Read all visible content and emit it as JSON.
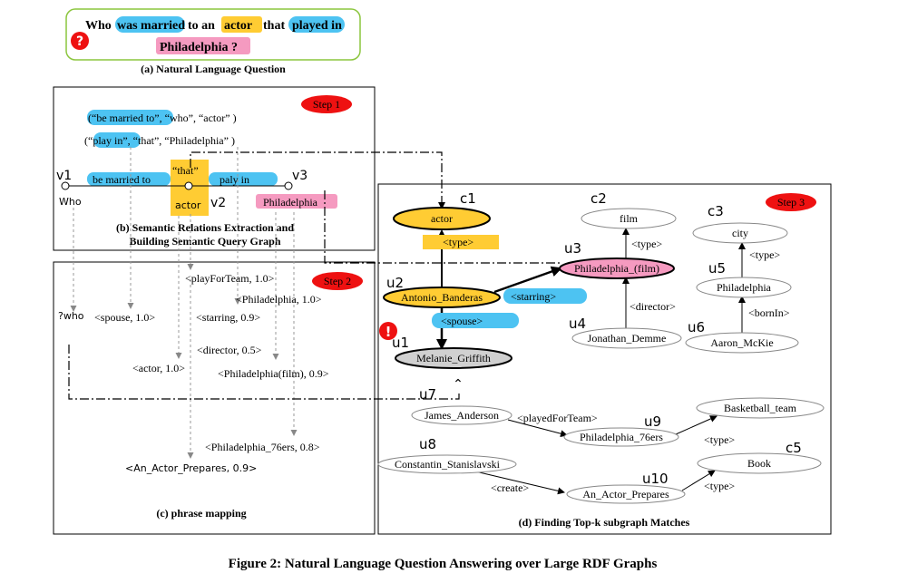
{
  "question": {
    "word_who": "Who",
    "hl_married": "was married",
    "word_to": "to an",
    "hl_actor": "actor",
    "word_that": "that",
    "hl_played": "played in",
    "hl_phil": "Philadelphia ?",
    "badge": "?",
    "caption": "(a) Natural Language Question"
  },
  "step_b": {
    "step_label": "Step 1",
    "rel1_hl": "(“be married to”",
    "rel1_rest": ", “who”, “actor” )",
    "rel2_open": "(“",
    "rel2_hl": "play in",
    "rel2_rest": "”, “that”, “Philadelphia” )",
    "v1": "v1",
    "v2": "v2",
    "v3": "v3",
    "who": "Who",
    "edge1": "be married to",
    "edge2": "paly in",
    "that": "“that”",
    "actor": "actor",
    "philadelphia": "Philadelphia",
    "caption_line1": "(b) Semantic Relations Extraction and",
    "caption_line2": "Building Semantic Query Graph"
  },
  "step_c": {
    "step_label": "Step 2",
    "who_var": "?who",
    "m_playForTeam": "<playForTeam, 1.0>",
    "m_philadelphia": "<Philadelphia, 1.0>",
    "m_spouse": "<spouse, 1.0>",
    "m_starring": "<starring, 0.9>",
    "m_director": "<director, 0.5>",
    "m_actor": "<actor, 1.0>",
    "m_phil_film": "<Philadelphia(film), 0.9>",
    "m_phil_76ers": "<Philadelphia_76ers, 0.8>",
    "m_actor_prepares": "<An_Actor_Prepares, 0.9>",
    "caption": "(c) phrase mapping"
  },
  "step_d": {
    "step_label": "Step 3",
    "c1": "c1",
    "c2": "c2",
    "c3": "c3",
    "c5": "c5",
    "u1": "u1",
    "u2": "u2",
    "u3": "u3",
    "u4": "u4",
    "u5": "u5",
    "u6": "u6",
    "u7": "u7",
    "u8": "u8",
    "u9": "u9",
    "u10": "u10",
    "actor": "actor",
    "film": "film",
    "city": "city",
    "type": "<type>",
    "phil_film": "Philadelphia_(film)",
    "antonio": "Antonio_Banderas",
    "starring": "<starring>",
    "spouse": "<spouse>",
    "melanie": "Melanie_Griffith",
    "director": "<director>",
    "jonathan": "Jonathan_Demme",
    "philadelphia": "Philadelphia",
    "bornIn": "<bornIn>",
    "aaron": "Aaron_McKie",
    "james": "James_Anderson",
    "playedForTeam": "<playedForTeam>",
    "phil76": "Philadelphia_76ers",
    "basketball": "Basketball_team",
    "constantin": "Constantin_Stanislavski",
    "book": "Book",
    "create": "<create>",
    "an_actor": "An_Actor_Prepares",
    "alert": "!",
    "caption": "(d)  Finding Top-k subgraph Matches"
  },
  "figure_caption": "Figure 2: Natural Language Question Answering over Large RDF Graphs",
  "colors": {
    "blue": "#4dc3f2",
    "yellow": "#ffcc33",
    "pink": "#f59ac0",
    "red": "#ee1111",
    "grey": "#d0d0d0",
    "green_border": "#8cc63f"
  }
}
